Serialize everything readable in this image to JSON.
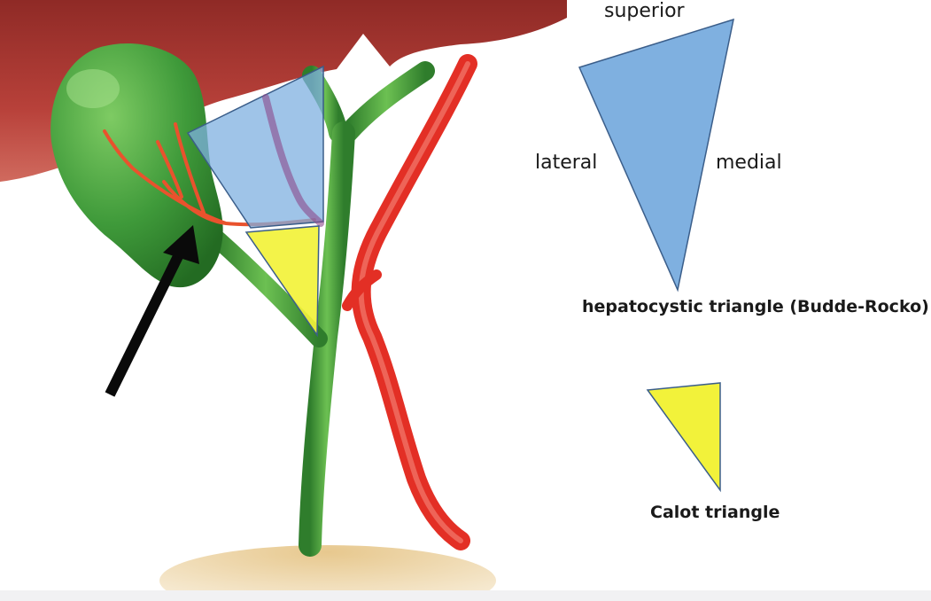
{
  "legend": {
    "superior": "superior",
    "lateral": "lateral",
    "medial": "medial",
    "hepatocystic": "hepatocystic triangle (Budde-Rocko)",
    "calot": "Calot triangle"
  },
  "colors": {
    "liver": "#b8413a",
    "gallbladder": "#3f9a3a",
    "bile_duct": "#4aa33f",
    "artery": "#e32f25",
    "hepatocystic_triangle": "#7fb0e0",
    "calot_triangle": "#f2f23a",
    "arrow": "#0a0a0a",
    "duodenum": "#f1e3c6"
  }
}
